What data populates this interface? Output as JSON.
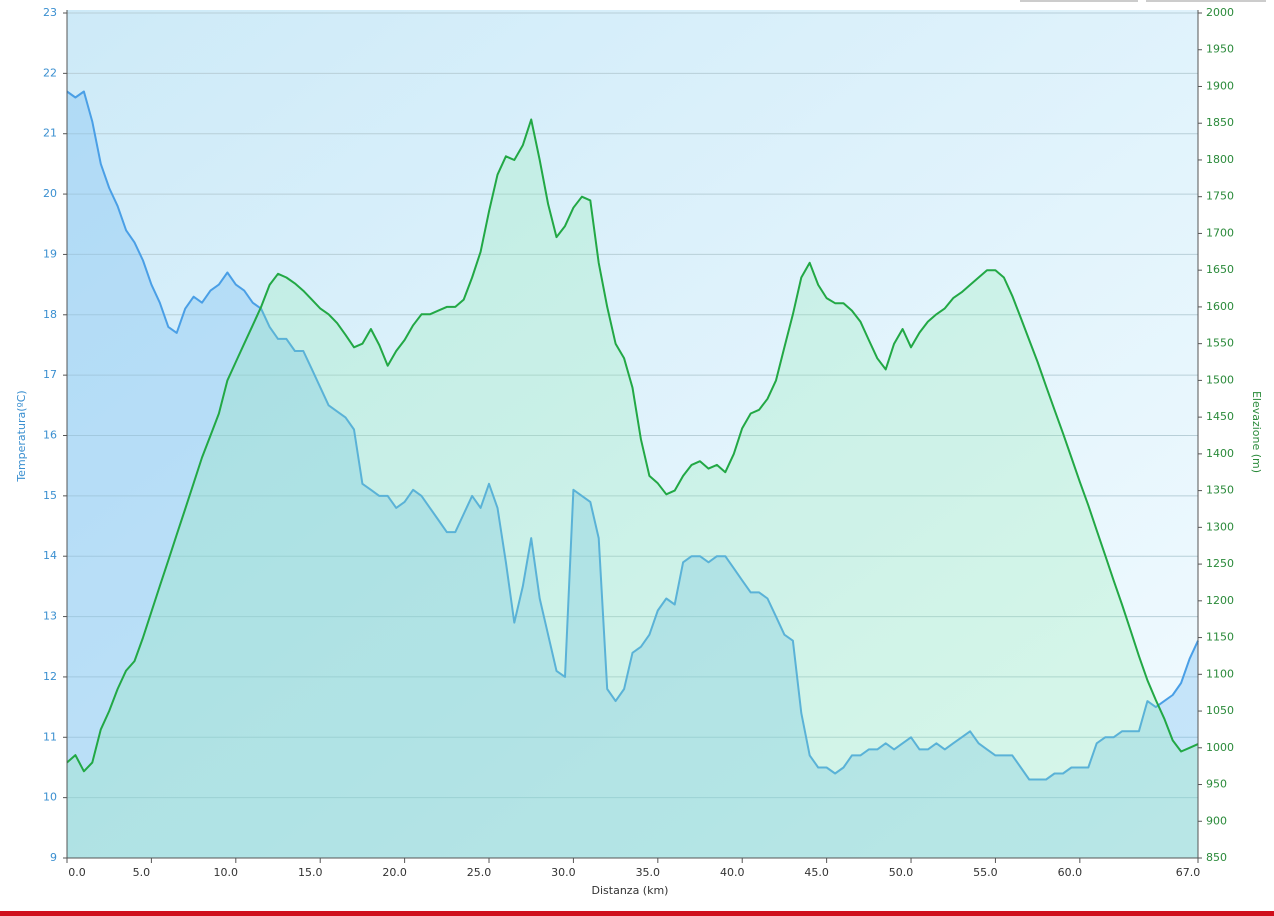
{
  "chart_data": {
    "type": "line",
    "xlabel": "Distanza  (km)",
    "ylabel": "Temperatura(ºC)",
    "y2label": "Elevazione (m)",
    "xlim": [
      0,
      67
    ],
    "ylim": [
      9,
      23
    ],
    "y2lim": [
      850,
      2000
    ],
    "xticks": [
      {
        "value": 0,
        "label": "0.0"
      },
      {
        "value": 5,
        "label": "5.0"
      },
      {
        "value": 10,
        "label": "10.0"
      },
      {
        "value": 15,
        "label": "15.0"
      },
      {
        "value": 20,
        "label": "20.0"
      },
      {
        "value": 25,
        "label": "25.0"
      },
      {
        "value": 30,
        "label": "30.0"
      },
      {
        "value": 35,
        "label": "35.0"
      },
      {
        "value": 40,
        "label": "40.0"
      },
      {
        "value": 45,
        "label": "45.0"
      },
      {
        "value": 50,
        "label": "50.0"
      },
      {
        "value": 55,
        "label": "55.0"
      },
      {
        "value": 60,
        "label": "60.0"
      },
      {
        "value": 67,
        "label": "67.0"
      }
    ],
    "yticks": [
      9,
      10,
      11,
      12,
      13,
      14,
      15,
      16,
      17,
      18,
      19,
      20,
      21,
      22,
      23
    ],
    "y2ticks": [
      850,
      900,
      950,
      1000,
      1050,
      1100,
      1150,
      1200,
      1250,
      1300,
      1350,
      1400,
      1450,
      1500,
      1550,
      1600,
      1650,
      1700,
      1750,
      1800,
      1850,
      1900,
      1950,
      2000
    ],
    "grid": true,
    "x": [
      0,
      0.5,
      1,
      1.5,
      2,
      2.5,
      3,
      3.5,
      4,
      4.5,
      5,
      5.5,
      6,
      6.5,
      7,
      7.5,
      8,
      8.5,
      9,
      9.5,
      10,
      10.5,
      11,
      11.5,
      12,
      12.5,
      13,
      13.5,
      14,
      14.5,
      15,
      15.5,
      16,
      16.5,
      17,
      17.5,
      18,
      18.5,
      19,
      19.5,
      20,
      20.5,
      21,
      21.5,
      22,
      22.5,
      23,
      23.5,
      24,
      24.5,
      25,
      25.5,
      26,
      26.5,
      27,
      27.5,
      28,
      28.5,
      29,
      29.5,
      30,
      30.5,
      31,
      31.5,
      32,
      32.5,
      33,
      33.5,
      34,
      34.5,
      35,
      35.5,
      36,
      36.5,
      37,
      37.5,
      38,
      38.5,
      39,
      39.5,
      40,
      40.5,
      41,
      41.5,
      42,
      42.5,
      43,
      43.5,
      44,
      44.5,
      45,
      45.5,
      46,
      46.5,
      47,
      47.5,
      48,
      48.5,
      49,
      49.5,
      50,
      50.5,
      51,
      51.5,
      52,
      52.5,
      53,
      53.5,
      54,
      54.5,
      55,
      55.5,
      56,
      56.5,
      57,
      57.5,
      58,
      58.5,
      59,
      59.5,
      60,
      60.5,
      61,
      61.5,
      62,
      62.5,
      63,
      63.5,
      64,
      64.5,
      65,
      65.5,
      66,
      66.5,
      67
    ],
    "series": [
      {
        "name": "Temperatura",
        "color": "#4a9fe6",
        "fill": "rgba(120,190,240,0.35)",
        "values": [
          21.7,
          21.6,
          21.7,
          21.2,
          20.5,
          20.1,
          19.8,
          19.4,
          19.2,
          18.9,
          18.5,
          18.2,
          17.8,
          17.7,
          18.1,
          18.3,
          18.2,
          18.4,
          18.5,
          18.7,
          18.5,
          18.4,
          18.2,
          18.1,
          17.8,
          17.6,
          17.6,
          17.4,
          17.4,
          17.1,
          16.8,
          16.5,
          16.4,
          16.3,
          16.1,
          15.2,
          15.1,
          15.0,
          15.0,
          14.8,
          14.9,
          15.1,
          15.0,
          14.8,
          14.6,
          14.4,
          14.4,
          14.7,
          15.0,
          14.8,
          15.2,
          14.8,
          13.9,
          12.9,
          13.5,
          14.3,
          13.3,
          12.7,
          12.1,
          12.0,
          15.1,
          15.0,
          14.9,
          14.3,
          11.8,
          11.6,
          11.8,
          12.4,
          12.5,
          12.7,
          13.1,
          13.3,
          13.2,
          13.9,
          14.0,
          14.0,
          13.9,
          14.0,
          14.0,
          13.8,
          13.6,
          13.4,
          13.4,
          13.3,
          13.0,
          12.7,
          12.6,
          11.4,
          10.7,
          10.5,
          10.5,
          10.4,
          10.5,
          10.7,
          10.7,
          10.8,
          10.8,
          10.9,
          10.8,
          10.9,
          11.0,
          10.8,
          10.8,
          10.9,
          10.8,
          10.9,
          11.0,
          11.1,
          10.9,
          10.8,
          10.7,
          10.7,
          10.7,
          10.5,
          10.3,
          10.3,
          10.3,
          10.4,
          10.4,
          10.5,
          10.5,
          10.5,
          10.9,
          11.0,
          11.0,
          11.1,
          11.1,
          11.1,
          11.6,
          11.5,
          11.6,
          11.7,
          11.9,
          12.3,
          12.6
        ]
      },
      {
        "name": "Elevazione",
        "color": "#22a845",
        "fill": "rgba(140,235,170,0.25)",
        "axis": "y2",
        "values": [
          980,
          990,
          968,
          980,
          1025,
          1050,
          1080,
          1105,
          1118,
          1150,
          1185,
          1220,
          1255,
          1290,
          1325,
          1360,
          1395,
          1425,
          1455,
          1500,
          1525,
          1550,
          1575,
          1600,
          1630,
          1645,
          1640,
          1632,
          1622,
          1610,
          1598,
          1590,
          1578,
          1562,
          1545,
          1550,
          1570,
          1548,
          1520,
          1540,
          1555,
          1575,
          1590,
          1590,
          1595,
          1600,
          1600,
          1610,
          1640,
          1675,
          1730,
          1780,
          1805,
          1800,
          1820,
          1855,
          1800,
          1740,
          1695,
          1710,
          1735,
          1750,
          1745,
          1660,
          1600,
          1550,
          1530,
          1490,
          1420,
          1370,
          1360,
          1345,
          1350,
          1370,
          1385,
          1390,
          1380,
          1385,
          1375,
          1400,
          1435,
          1455,
          1460,
          1475,
          1500,
          1545,
          1590,
          1640,
          1660,
          1630,
          1612,
          1605,
          1605,
          1595,
          1580,
          1555,
          1530,
          1515,
          1550,
          1570,
          1545,
          1565,
          1580,
          1590,
          1598,
          1612,
          1620,
          1630,
          1640,
          1650,
          1650,
          1640,
          1615,
          1585,
          1555,
          1525,
          1492,
          1460,
          1428,
          1395,
          1362,
          1330,
          1296,
          1262,
          1228,
          1195,
          1160,
          1125,
          1092,
          1065,
          1040,
          1010,
          995,
          1000,
          1005
        ]
      }
    ]
  }
}
